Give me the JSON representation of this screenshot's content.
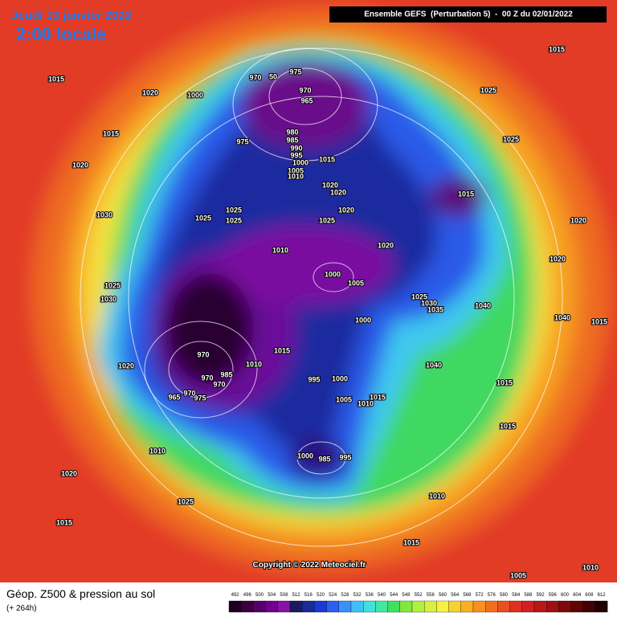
{
  "header": {
    "date": "Jeudi 13 janvier 2022",
    "time": "2:00 locale",
    "run": "Ensemble GEFS  (Perturbation 5)  -  00 Z du 02/01/2022"
  },
  "map": {
    "pressure_labels": [
      1015,
      1015,
      1020,
      1000,
      970,
      50,
      975,
      970,
      965,
      975,
      980,
      985,
      990,
      995,
      1000,
      1005,
      1010,
      1015,
      1025,
      1025,
      1015,
      1020,
      1030,
      1020,
      1020,
      1020,
      1025,
      1025,
      1025,
      1015,
      1025,
      1020,
      1020,
      1010,
      1020,
      1000,
      1005,
      1025,
      1030,
      1025,
      1030,
      1035,
      1040,
      1040,
      1015,
      1000,
      1015,
      970,
      1020,
      1010,
      995,
      1000,
      1040,
      970,
      985,
      970,
      1005,
      1015,
      1010,
      975,
      970,
      965,
      1015,
      1015,
      1010,
      1000,
      985,
      995,
      1020,
      1025,
      1010,
      1015,
      1015,
      1005,
      1010
    ],
    "copyright": "Copyright © 2022 Meteociel.fr"
  },
  "footer": {
    "title": "Géop. Z500 & pression au sol",
    "lead": "(+ 264h)"
  },
  "scale": {
    "values": [
      492,
      496,
      500,
      504,
      508,
      512,
      516,
      520,
      524,
      528,
      532,
      536,
      540,
      544,
      548,
      552,
      556,
      560,
      564,
      568,
      572,
      576,
      580,
      584,
      588,
      592,
      596,
      600,
      604,
      608,
      612
    ],
    "colors": [
      "#200020",
      "#3a0040",
      "#55006a",
      "#700090",
      "#8a10a8",
      "#1a1a60",
      "#1a2a9a",
      "#1a3ad8",
      "#2a60f0",
      "#3a90f8",
      "#40c0f8",
      "#40e0e0",
      "#40e8a0",
      "#40e060",
      "#80e840",
      "#b0f040",
      "#d8f040",
      "#f8f040",
      "#f8d030",
      "#f8b020",
      "#f89020",
      "#f07020",
      "#e85020",
      "#e03020",
      "#d02020",
      "#b81818",
      "#a01010",
      "#800808",
      "#600404",
      "#400202",
      "#200000"
    ]
  }
}
